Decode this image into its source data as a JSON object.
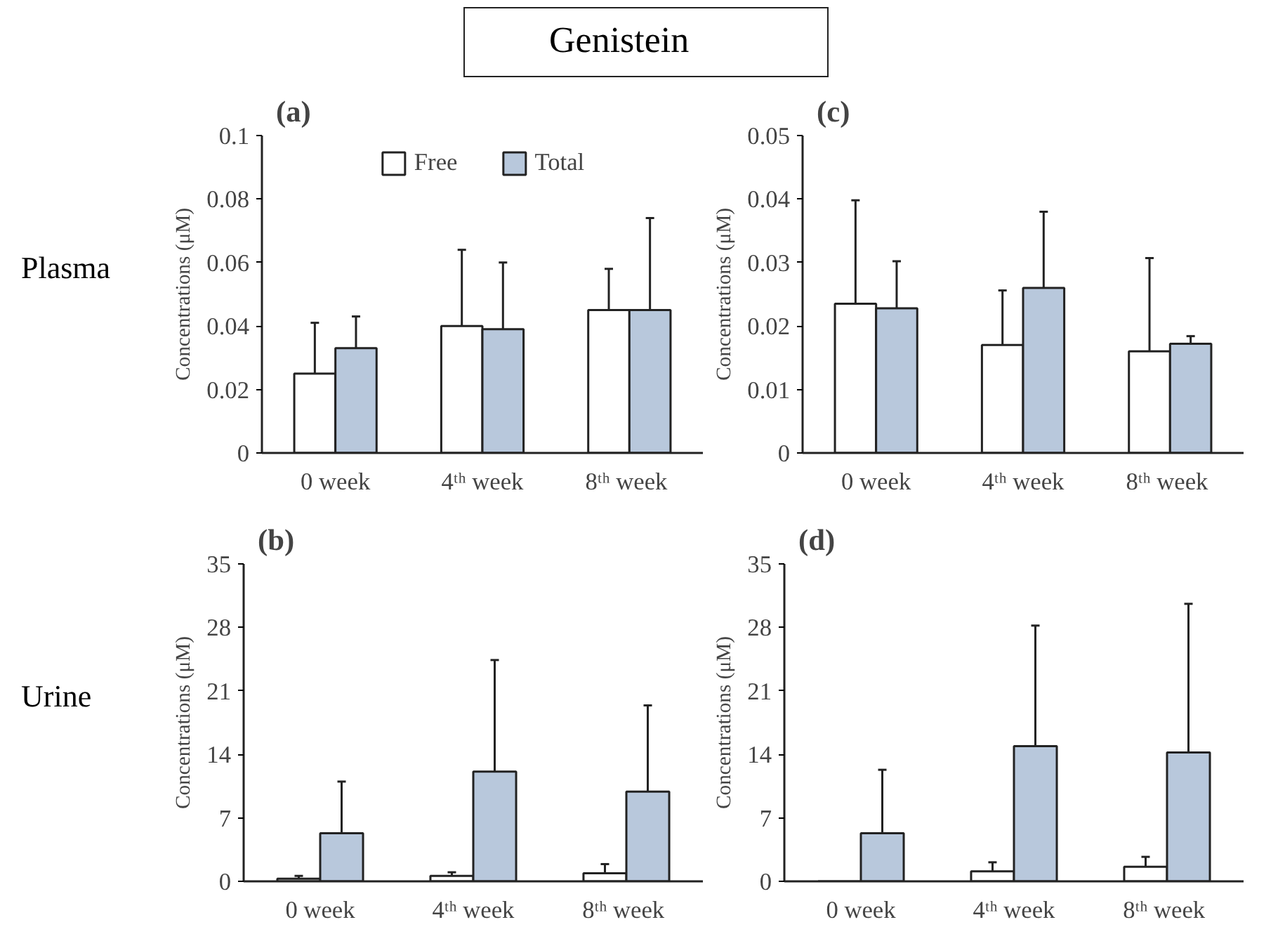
{
  "chart_data": [
    {
      "type": "bar",
      "title": "(a)",
      "ylabel": "Concentrations (μM)",
      "annotations": [
        "Genistein",
        "Plasma"
      ],
      "categories": [
        "0 week",
        "4ᵗʰ week",
        "8ᵗʰ  week"
      ],
      "ylim": [
        0,
        0.1
      ],
      "yticks": [
        0,
        0.02,
        0.04,
        0.06,
        0.08,
        0.1
      ],
      "legend": "top",
      "grid": false,
      "series": [
        {
          "name": "Free",
          "color": "#ffffff",
          "values": [
            0.025,
            0.04,
            0.045
          ],
          "errors": [
            [
              0.025,
              0.041
            ],
            [
              0.04,
              0.064
            ],
            [
              0.045,
              0.058
            ]
          ]
        },
        {
          "name": "Total",
          "color": "#b8c8dc",
          "values": [
            0.033,
            0.039,
            0.045
          ],
          "errors": [
            [
              0.033,
              0.043
            ],
            [
              0.039,
              0.06
            ],
            [
              0.045,
              0.074
            ]
          ]
        }
      ]
    },
    {
      "type": "bar",
      "title": "(c)",
      "ylabel": "Concentrations (μM)",
      "categories": [
        "0 week",
        "4ᵗʰ week",
        "8ᵗʰ  week"
      ],
      "ylim": [
        0,
        0.05
      ],
      "yticks": [
        0,
        0.01,
        0.02,
        0.03,
        0.04,
        0.05
      ],
      "grid": false,
      "series": [
        {
          "color": "#ffffff",
          "values": [
            0.0235,
            0.017,
            0.016
          ],
          "errors": [
            [
              0.0235,
              0.0398
            ],
            [
              0.017,
              0.0256
            ],
            [
              0.016,
              0.0307
            ]
          ]
        },
        {
          "color": "#b8c8dc",
          "values": [
            0.0228,
            0.026,
            0.0172
          ],
          "errors": [
            [
              0.0228,
              0.0302
            ],
            [
              0.026,
              0.038
            ],
            [
              0.0172,
              0.0184
            ]
          ]
        }
      ]
    },
    {
      "type": "bar",
      "title": "(b)",
      "ylabel": "Concentrations (μM)",
      "annotations": [
        "Urine"
      ],
      "categories": [
        "0 week",
        "4ᵗʰ week",
        "8ᵗʰ  week"
      ],
      "ylim": [
        0,
        35
      ],
      "yticks": [
        0,
        7,
        14,
        21,
        28,
        35
      ],
      "grid": false,
      "series": [
        {
          "color": "#ffffff",
          "values": [
            0.3,
            0.6,
            0.9
          ],
          "errors": [
            [
              0.3,
              0.6
            ],
            [
              0.6,
              1.0
            ],
            [
              0.9,
              1.9
            ]
          ]
        },
        {
          "color": "#b8c8dc",
          "values": [
            5.3,
            12.1,
            9.9
          ],
          "errors": [
            [
              5.3,
              11.0
            ],
            [
              12.1,
              24.4
            ],
            [
              9.9,
              19.4
            ]
          ]
        }
      ]
    },
    {
      "type": "bar",
      "title": "(d)",
      "ylabel": "Concentrations (μM)",
      "categories": [
        "0 week",
        "4ᵗʰ week",
        "8ᵗʰ  week"
      ],
      "ylim": [
        0,
        35
      ],
      "yticks": [
        0,
        7,
        14,
        21,
        28,
        35
      ],
      "grid": false,
      "series": [
        {
          "color": "#ffffff",
          "values": [
            null,
            1.1,
            1.6
          ],
          "errors": [
            null,
            [
              1.1,
              2.1
            ],
            [
              1.6,
              2.7
            ]
          ]
        },
        {
          "color": "#b8c8dc",
          "values": [
            5.3,
            14.9,
            14.2
          ],
          "errors": [
            [
              5.3,
              12.3
            ],
            [
              14.9,
              28.2
            ],
            [
              14.2,
              30.6
            ]
          ]
        }
      ]
    }
  ]
}
